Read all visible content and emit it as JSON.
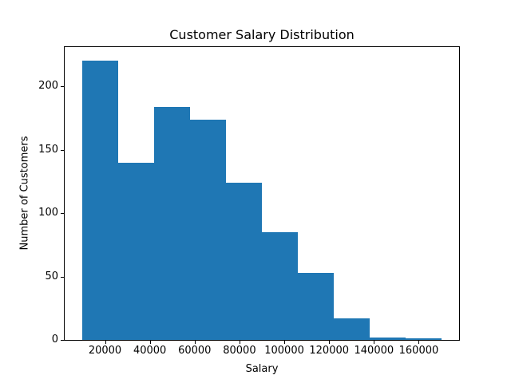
{
  "chart_data": {
    "type": "bar",
    "subtype": "histogram",
    "title": "Customer Salary Distribution",
    "xlabel": "Salary",
    "ylabel": "Number of Customers",
    "bin_edges": [
      10000,
      26000,
      42000,
      58000,
      74000,
      90000,
      106000,
      122000,
      138000,
      154000,
      170000
    ],
    "counts": [
      220,
      140,
      184,
      174,
      124,
      85,
      53,
      17,
      2,
      1
    ],
    "xticks": [
      20000,
      40000,
      60000,
      80000,
      100000,
      120000,
      140000,
      160000
    ],
    "xtick_labels": [
      "20000",
      "40000",
      "60000",
      "80000",
      "100000",
      "120000",
      "140000",
      "160000"
    ],
    "yticks": [
      0,
      50,
      100,
      150,
      200
    ],
    "ytick_labels": [
      "0",
      "50",
      "100",
      "150",
      "200"
    ],
    "xlim": [
      2000,
      178000
    ],
    "ylim": [
      0,
      231
    ],
    "grid": false,
    "legend": null,
    "bar_color": "#1f77b4",
    "text_color": "#000000",
    "background_color": "#ffffff"
  }
}
